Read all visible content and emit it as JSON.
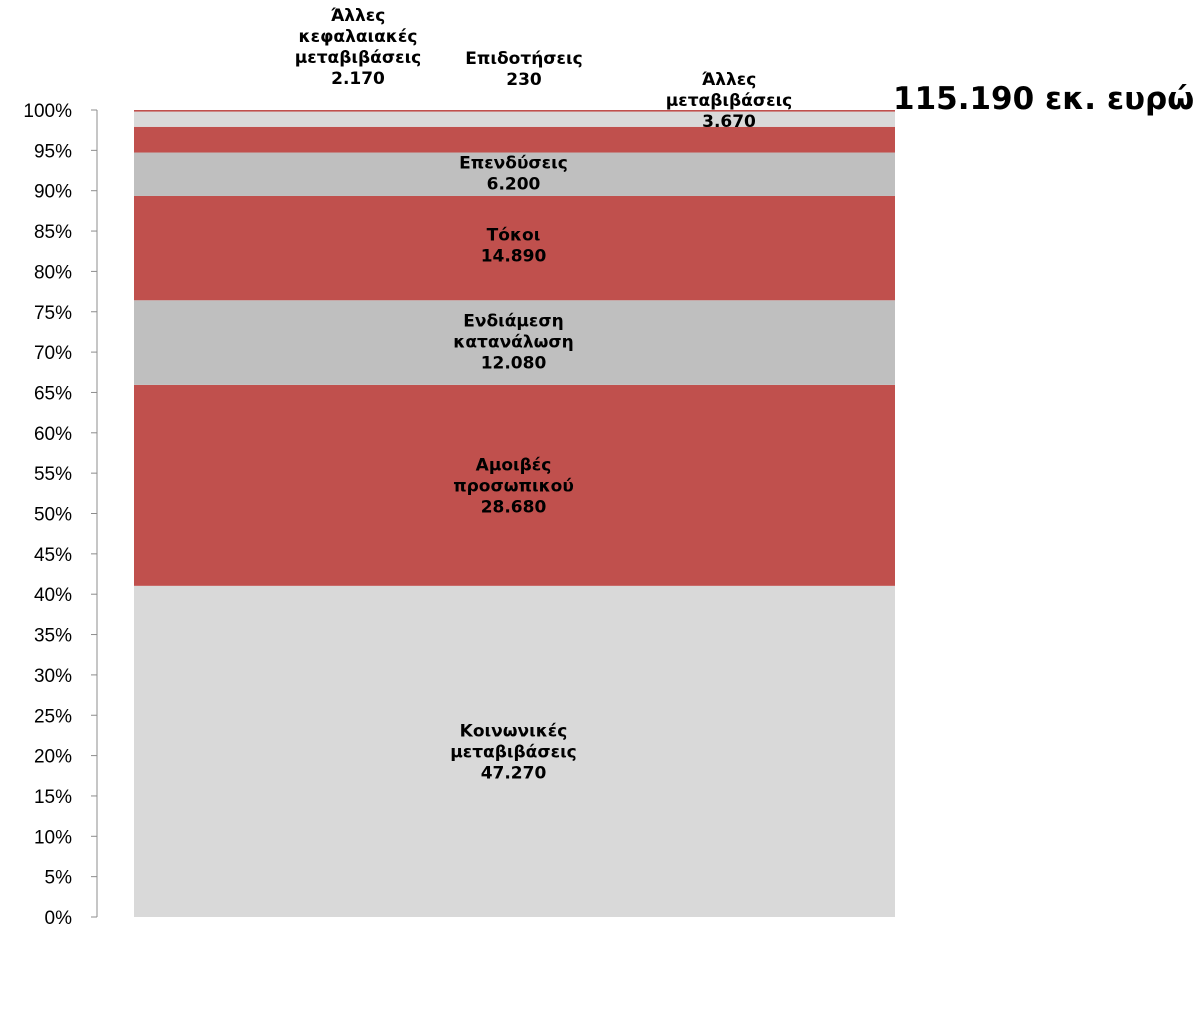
{
  "chart_data": {
    "type": "bar",
    "stacked": true,
    "normalized": true,
    "total_label": "115.190 εκ. ευρώ",
    "ylim": [
      0,
      100
    ],
    "y_ticks": [
      "0%",
      "5%",
      "10%",
      "15%",
      "20%",
      "25%",
      "30%",
      "35%",
      "40%",
      "45%",
      "50%",
      "55%",
      "60%",
      "65%",
      "70%",
      "75%",
      "80%",
      "85%",
      "90%",
      "95%",
      "100%"
    ],
    "grid": false,
    "legend": "none",
    "series": [
      {
        "name": "Κοινωνικές μεταβιβάσεις",
        "lines": [
          "Κοινωνικές",
          "μεταβιβάσεις",
          "47.270"
        ],
        "value": 47270,
        "color": "#d9d9d9"
      },
      {
        "name": "Αμοιβές προσωπικού",
        "lines": [
          "Αμοιβές",
          "προσωπικού",
          "28.680"
        ],
        "value": 28680,
        "color": "#c0504d"
      },
      {
        "name": "Ενδιάμεση κατανάλωση",
        "lines": [
          "Ενδιάμεση",
          "κατανάλωση",
          "12.080"
        ],
        "value": 12080,
        "color": "#bfbfbf"
      },
      {
        "name": "Τόκοι",
        "lines": [
          "Τόκοι",
          "14.890"
        ],
        "value": 14890,
        "color": "#c0504d"
      },
      {
        "name": "Επενδύσεις",
        "lines": [
          "Επενδύσεις",
          "6.200"
        ],
        "value": 6200,
        "color": "#bfbfbf"
      },
      {
        "name": "Άλλες μεταβιβάσεις",
        "lines": [
          "Άλλες",
          "μεταβιβάσεις",
          "3.670"
        ],
        "value": 3670,
        "color": "#c0504d"
      },
      {
        "name": "Άλλες κεφαλαιακές μεταβιβάσεις",
        "lines": [
          "Άλλες",
          "κεφαλαιακές",
          "μεταβιβάσεις",
          "2.170"
        ],
        "value": 2170,
        "color": "#d9d9d9"
      },
      {
        "name": "Επιδοτήσεις",
        "lines": [
          "Επιδοτήσεις",
          "230"
        ],
        "value": 230,
        "color": "#c0504d"
      }
    ]
  }
}
